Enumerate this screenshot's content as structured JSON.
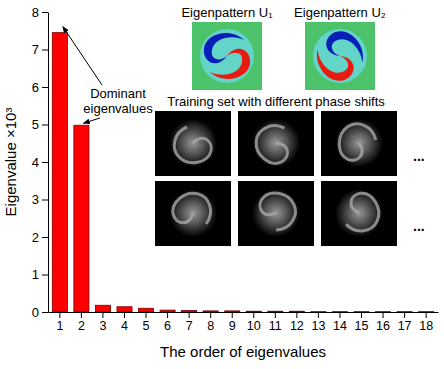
{
  "chart_data": {
    "type": "bar",
    "x_label": "The order of eigenvalues",
    "y_label": "Eigenvalue ×10³",
    "categories": [
      "1",
      "2",
      "3",
      "4",
      "5",
      "6",
      "7",
      "8",
      "9",
      "10",
      "11",
      "12",
      "13",
      "14",
      "15",
      "16",
      "17",
      "18"
    ],
    "values": [
      7.45,
      4.98,
      0.18,
      0.14,
      0.1,
      0.05,
      0.04,
      0.03,
      0.03,
      0.02,
      0.02,
      0.02,
      0.01,
      0.01,
      0.01,
      0.01,
      0.01,
      0.01
    ],
    "color": "#ff0000",
    "ylim": [
      0,
      8
    ],
    "yticks": [
      0,
      1,
      2,
      3,
      4,
      5,
      6,
      7,
      8
    ],
    "annotations": {
      "dominant": [
        "Dominant",
        "eigenvalues"
      ],
      "inset_labels": [
        "Eigenpattern U₁",
        "Eigenpattern U₂"
      ],
      "training_label": "Training set with different phase shifts",
      "ellipsis": [
        "...",
        "..."
      ]
    }
  }
}
